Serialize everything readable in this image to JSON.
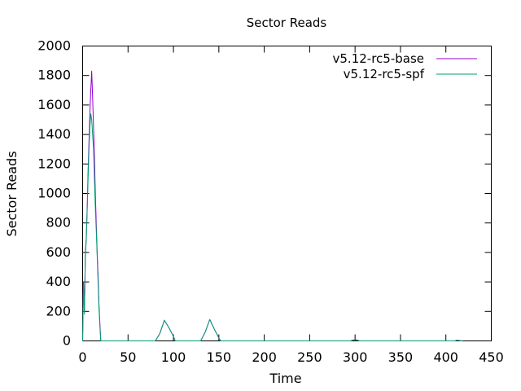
{
  "chart_data": {
    "type": "line",
    "title": "Sector Reads",
    "xlabel": "Time",
    "ylabel": "Sector Reads",
    "xlim": [
      0,
      450
    ],
    "ylim": [
      0,
      2000
    ],
    "x_ticks": [
      0,
      50,
      100,
      150,
      200,
      250,
      300,
      350,
      400,
      450
    ],
    "y_ticks": [
      0,
      200,
      400,
      600,
      800,
      1000,
      1200,
      1400,
      1600,
      1800,
      2000
    ],
    "x_tick_labels": [
      "0",
      "50",
      "100",
      "150",
      "200",
      "250",
      "300",
      "350",
      "400",
      "450"
    ],
    "y_tick_labels": [
      "0",
      "200",
      "400",
      "600",
      "800",
      "1000",
      "1200",
      "1400",
      "1600",
      "1800",
      "2000"
    ],
    "grid": false,
    "legend_position": "top-right",
    "series": [
      {
        "name": "v5.12-rc5-base",
        "color": "#9400d3",
        "points": [
          [
            0,
            0
          ],
          [
            1,
            400
          ],
          [
            2,
            200
          ],
          [
            3,
            600
          ],
          [
            4,
            700
          ],
          [
            5,
            900
          ],
          [
            6,
            1150
          ],
          [
            7,
            1350
          ],
          [
            8,
            1550
          ],
          [
            9,
            1700
          ],
          [
            10,
            1830
          ],
          [
            11,
            1650
          ],
          [
            12,
            1450
          ],
          [
            13,
            1250
          ],
          [
            14,
            1000
          ],
          [
            15,
            800
          ],
          [
            16,
            600
          ],
          [
            17,
            450
          ],
          [
            18,
            250
          ],
          [
            19,
            120
          ],
          [
            20,
            0
          ],
          [
            80,
            0
          ],
          [
            85,
            50
          ],
          [
            90,
            140
          ],
          [
            95,
            90
          ],
          [
            100,
            30
          ],
          [
            102,
            0
          ],
          [
            130,
            0
          ],
          [
            135,
            60
          ],
          [
            140,
            145
          ],
          [
            145,
            80
          ],
          [
            150,
            20
          ],
          [
            152,
            0
          ],
          [
            295,
            0
          ],
          [
            300,
            10
          ],
          [
            305,
            0
          ],
          [
            410,
            0
          ],
          [
            412,
            5
          ],
          [
            418,
            0
          ]
        ]
      },
      {
        "name": "v5.12-rc5-spf",
        "color": "#009e73",
        "points": [
          [
            0,
            0
          ],
          [
            1,
            380
          ],
          [
            2,
            180
          ],
          [
            3,
            580
          ],
          [
            4,
            680
          ],
          [
            5,
            880
          ],
          [
            6,
            1100
          ],
          [
            7,
            1300
          ],
          [
            8,
            1450
          ],
          [
            9,
            1540
          ],
          [
            10,
            1500
          ],
          [
            11,
            1400
          ],
          [
            12,
            1300
          ],
          [
            13,
            1100
          ],
          [
            14,
            900
          ],
          [
            15,
            750
          ],
          [
            16,
            580
          ],
          [
            17,
            400
          ],
          [
            18,
            220
          ],
          [
            19,
            100
          ],
          [
            20,
            0
          ],
          [
            80,
            0
          ],
          [
            85,
            50
          ],
          [
            90,
            140
          ],
          [
            95,
            90
          ],
          [
            100,
            30
          ],
          [
            102,
            0
          ],
          [
            130,
            0
          ],
          [
            135,
            60
          ],
          [
            140,
            145
          ],
          [
            145,
            80
          ],
          [
            150,
            20
          ],
          [
            152,
            0
          ],
          [
            295,
            0
          ],
          [
            300,
            10
          ],
          [
            305,
            0
          ],
          [
            410,
            0
          ],
          [
            412,
            5
          ],
          [
            418,
            0
          ]
        ]
      }
    ]
  }
}
